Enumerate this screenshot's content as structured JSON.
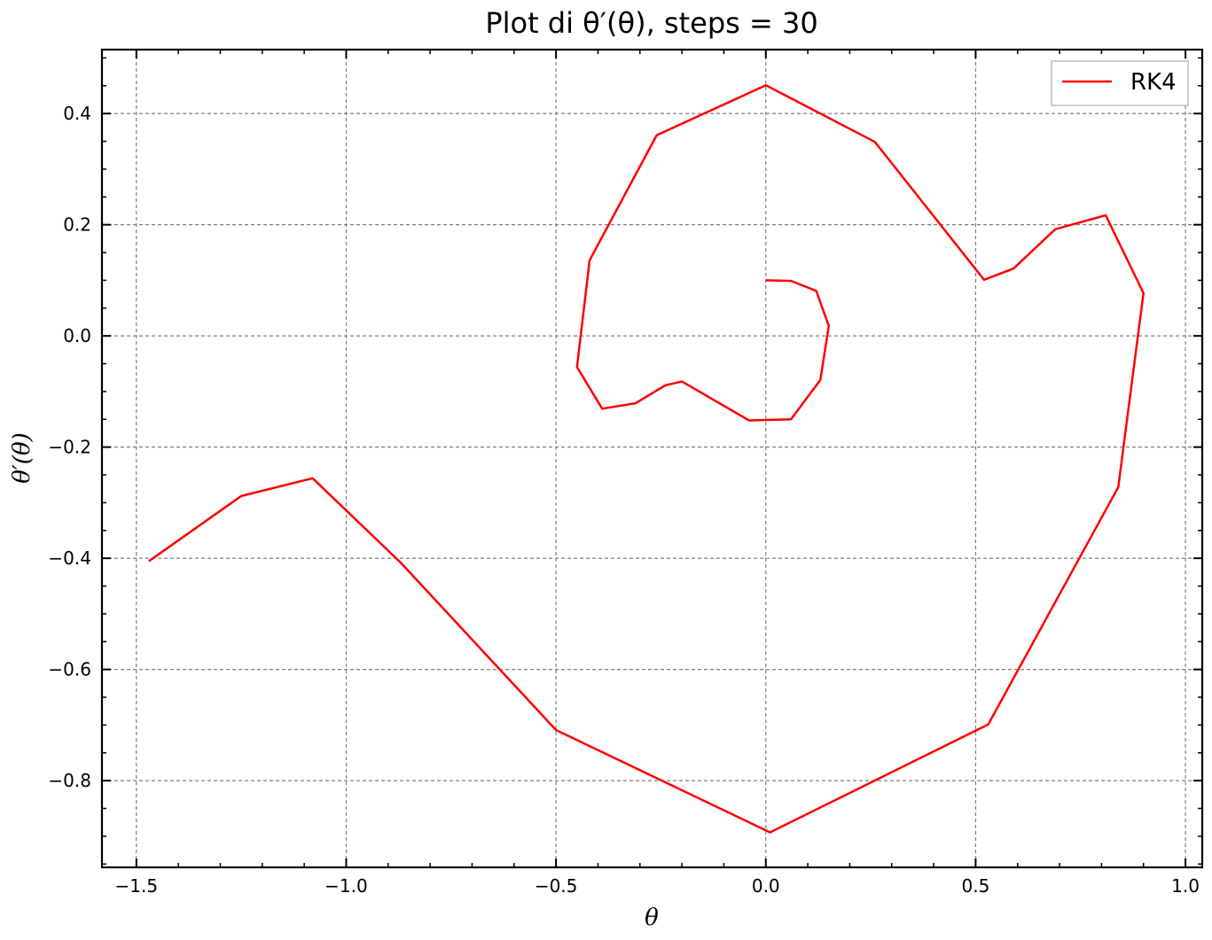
{
  "chart_data": {
    "type": "line",
    "title": "Plot di θ′(θ), steps = 30",
    "xlabel": "θ",
    "ylabel": "θ′(θ)",
    "xlim": [
      -1.582,
      1.04
    ],
    "ylim": [
      -0.956,
      0.515
    ],
    "xticks": [
      -1.5,
      -1.0,
      -0.5,
      0.0,
      0.5,
      1.0
    ],
    "xtick_labels": [
      "−1.5",
      "−1.0",
      "−0.5",
      "0.0",
      "0.5",
      "1.0"
    ],
    "yticks": [
      0.4,
      0.2,
      0.0,
      -0.2,
      -0.4,
      -0.6,
      -0.8
    ],
    "ytick_labels": [
      "0.4",
      "0.2",
      "0.0",
      "−0.2",
      "−0.4",
      "−0.6",
      "−0.8"
    ],
    "x_minor_step": 0.1,
    "y_minor_step": 0.05,
    "grid": true,
    "legend_position": "top-right",
    "series": [
      {
        "name": "RK4",
        "color": "#ff0000",
        "x": [
          0.0,
          0.06,
          0.12,
          0.15,
          0.13,
          0.06,
          -0.04,
          -0.2,
          -0.24,
          -0.31,
          -0.39,
          -0.45,
          -0.42,
          -0.26,
          0.0,
          0.26,
          0.52,
          0.59,
          0.69,
          0.81,
          0.9,
          0.84,
          0.53,
          0.01,
          -0.5,
          -0.87,
          -1.08,
          -1.25,
          -1.47
        ],
        "y": [
          0.1,
          0.099,
          0.081,
          0.018,
          -0.079,
          -0.15,
          -0.152,
          -0.082,
          -0.089,
          -0.121,
          -0.131,
          -0.056,
          0.136,
          0.361,
          0.451,
          0.349,
          0.101,
          0.121,
          0.192,
          0.217,
          0.077,
          -0.272,
          -0.699,
          -0.893,
          -0.709,
          -0.408,
          -0.256,
          -0.288,
          -0.405
        ]
      }
    ]
  }
}
